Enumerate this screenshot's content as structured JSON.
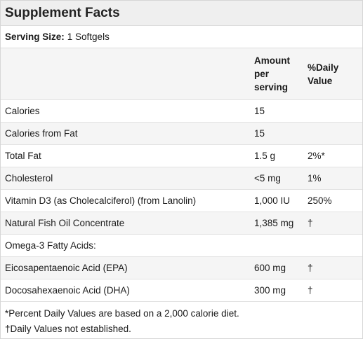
{
  "title": "Supplement Facts",
  "serving": {
    "label": "Serving Size:",
    "value": "1 Softgels"
  },
  "header": {
    "amount_lines": [
      "Amount",
      "per",
      "serving"
    ],
    "daily_lines": [
      "%Daily",
      "Value"
    ]
  },
  "rows": [
    {
      "name": "Calories",
      "amount": "15",
      "dv": ""
    },
    {
      "name": "Calories from Fat",
      "amount": "15",
      "dv": ""
    },
    {
      "name": "Total Fat",
      "amount": "1.5 g",
      "dv": "2%*"
    },
    {
      "name": "Cholesterol",
      "amount": "<5 mg",
      "dv": "1%"
    },
    {
      "name": "Vitamin D3 (as Cholecalciferol) (from Lanolin)",
      "amount": "1,000 IU",
      "dv": "250%"
    },
    {
      "name": "Natural Fish Oil Concentrate",
      "amount": "1,385 mg",
      "dv": "†"
    },
    {
      "name": "Omega-3 Fatty Acids:",
      "amount": "",
      "dv": ""
    },
    {
      "name": "Eicosapentaenoic Acid (EPA)",
      "amount": "600 mg",
      "dv": "†"
    },
    {
      "name": "Docosahexaenoic Acid (DHA)",
      "amount": "300 mg",
      "dv": "†"
    }
  ],
  "footnotes": [
    "*Percent Daily Values are based on a 2,000 calorie diet.",
    "†Daily Values not established."
  ]
}
